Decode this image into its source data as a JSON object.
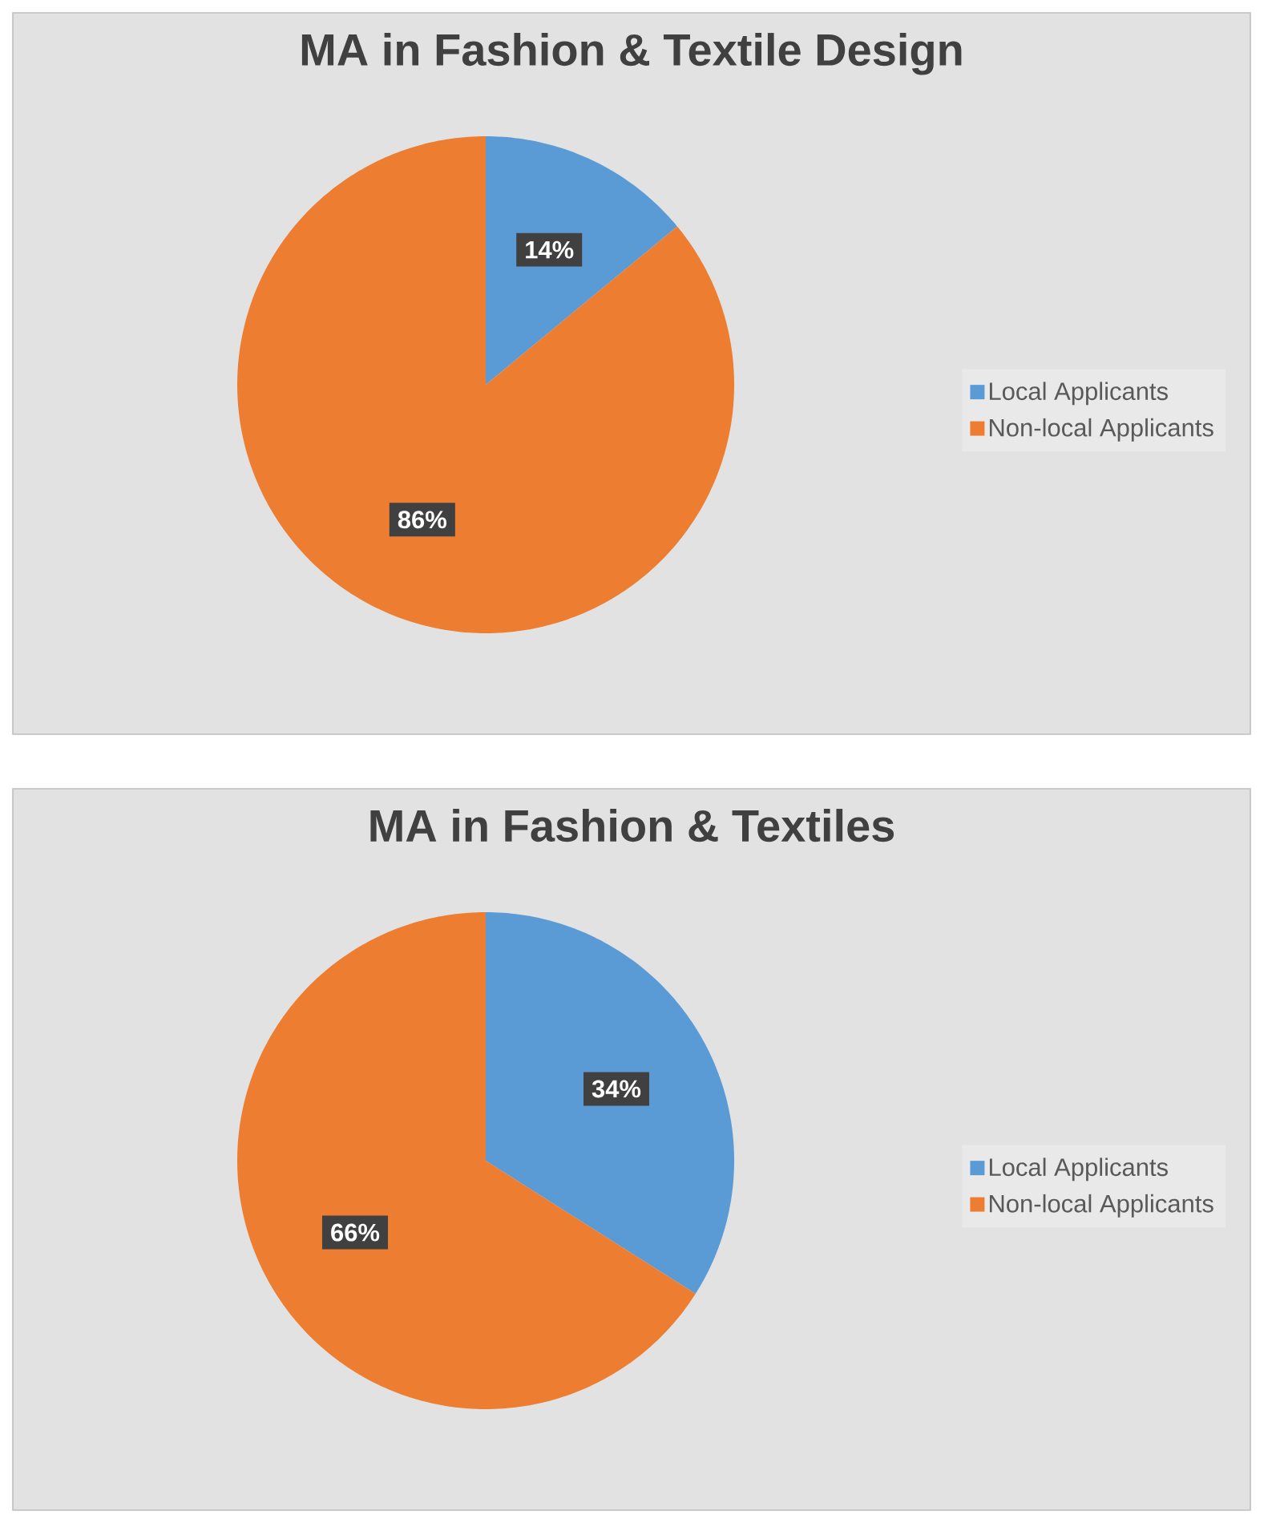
{
  "chart_data": [
    {
      "type": "pie",
      "title": "MA in Fashion & Textile Design",
      "categories": [
        "Local Applicants",
        "Non-local Applicants"
      ],
      "values": [
        14,
        86
      ],
      "colors": [
        "#5b9bd5",
        "#ed7d31"
      ],
      "value_labels": [
        "14%",
        "86%"
      ],
      "legend": "right"
    },
    {
      "type": "pie",
      "title": "MA in Fashion & Textiles",
      "categories": [
        "Local Applicants",
        "Non-local Applicants"
      ],
      "values": [
        34,
        66
      ],
      "colors": [
        "#5b9bd5",
        "#ed7d31"
      ],
      "value_labels": [
        "34%",
        "66%"
      ],
      "legend": "right"
    }
  ]
}
